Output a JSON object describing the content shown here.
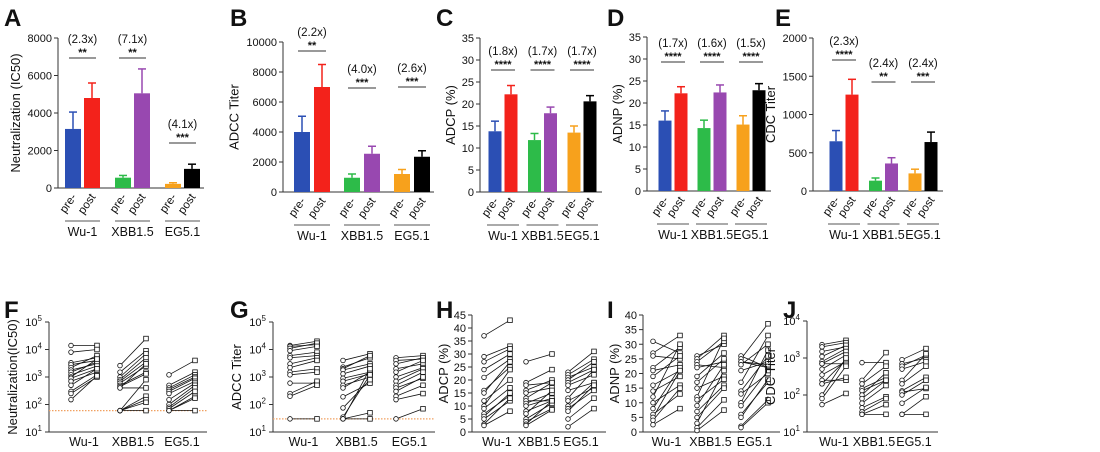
{
  "figure": {
    "groups": [
      "Wu-1",
      "XBB1.5",
      "EG5.1"
    ],
    "conditions": [
      "pre-",
      "post"
    ],
    "bar_colors": [
      [
        "#2b4fb4",
        "#f3221b"
      ],
      [
        "#2dbb49",
        "#9848b0"
      ],
      [
        "#f7a11c",
        "#000000"
      ]
    ],
    "lod_color": "#f0a060"
  },
  "chart_data": [
    {
      "panel": "A",
      "type": "bar",
      "ylabel": "Neutralization (IC50)",
      "ylim": [
        0,
        8000
      ],
      "yticks": [
        0,
        2000,
        4000,
        6000,
        8000
      ],
      "values": [
        [
          3150,
          4800
        ],
        [
          550,
          5050
        ],
        [
          220,
          1020
        ]
      ],
      "errors": [
        [
          900,
          800
        ],
        [
          120,
          1300
        ],
        [
          60,
          250
        ]
      ],
      "annotations": [
        {
          "fold": "(2.3x)",
          "sig": "**"
        },
        {
          "fold": "(7.1x)",
          "sig": "**"
        },
        {
          "fold": "(4.1x)",
          "sig": "***"
        }
      ]
    },
    {
      "panel": "B",
      "type": "bar",
      "ylabel": "ADCC Titer",
      "ylim": [
        0,
        10000
      ],
      "yticks": [
        0,
        2000,
        4000,
        6000,
        8000,
        10000
      ],
      "values": [
        [
          4000,
          7000
        ],
        [
          950,
          2550
        ],
        [
          1200,
          2350
        ]
      ],
      "errors": [
        [
          1050,
          1500
        ],
        [
          250,
          500
        ],
        [
          300,
          400
        ]
      ],
      "annotations": [
        {
          "fold": "(2.2x)",
          "sig": "**"
        },
        {
          "fold": "(4.0x)",
          "sig": "***"
        },
        {
          "fold": "(2.6x)",
          "sig": "***"
        }
      ]
    },
    {
      "panel": "C",
      "type": "bar",
      "ylabel": "ADCP (%)",
      "ylim": [
        0,
        35
      ],
      "yticks": [
        0,
        5,
        10,
        15,
        20,
        25,
        30,
        35
      ],
      "values": [
        [
          13.8,
          22.2
        ],
        [
          11.8,
          17.9
        ],
        [
          13.5,
          20.6
        ]
      ],
      "errors": [
        [
          2.3,
          2.0
        ],
        [
          1.5,
          1.4
        ],
        [
          1.5,
          1.3
        ]
      ],
      "annotations": [
        {
          "fold": "(1.8x)",
          "sig": "****"
        },
        {
          "fold": "(1.7x)",
          "sig": "****"
        },
        {
          "fold": "(1.7x)",
          "sig": "****"
        }
      ]
    },
    {
      "panel": "D",
      "type": "bar",
      "ylabel": "ADNP (%)",
      "ylim": [
        0,
        35
      ],
      "yticks": [
        0,
        5,
        10,
        15,
        20,
        25,
        30,
        35
      ],
      "values": [
        [
          16.0,
          22.2
        ],
        [
          14.3,
          22.4
        ],
        [
          15.1,
          22.9
        ]
      ],
      "errors": [
        [
          2.2,
          1.5
        ],
        [
          1.8,
          1.7
        ],
        [
          2.0,
          1.5
        ]
      ],
      "annotations": [
        {
          "fold": "(1.7x)",
          "sig": "****"
        },
        {
          "fold": "(1.6x)",
          "sig": "****"
        },
        {
          "fold": "(1.5x)",
          "sig": "****"
        }
      ]
    },
    {
      "panel": "E",
      "type": "bar",
      "ylabel": "CDC Titer",
      "ylim": [
        0,
        2000
      ],
      "yticks": [
        0,
        500,
        1000,
        1500,
        2000
      ],
      "values": [
        [
          650,
          1260
        ],
        [
          135,
          360
        ],
        [
          230,
          640
        ]
      ],
      "errors": [
        [
          140,
          200
        ],
        [
          35,
          75
        ],
        [
          55,
          130
        ]
      ],
      "annotations": [
        {
          "fold": "(2.3x)",
          "sig": "****"
        },
        {
          "fold": "(2.4x)",
          "sig": "**"
        },
        {
          "fold": "(2.4x)",
          "sig": "***"
        }
      ]
    },
    {
      "panel": "F",
      "type": "paired-line",
      "ylabel": "Neutralization(IC50)",
      "yscale": "log",
      "ylim": [
        10,
        100000
      ],
      "yticks": [
        10,
        100,
        1000,
        10000,
        100000
      ],
      "lod": 60,
      "pairs": [
        {
          "pre": [
            14000,
            8000,
            3300,
            2800,
            2200,
            1800,
            1500,
            1200,
            1000,
            900,
            700,
            500,
            300,
            250,
            150
          ],
          "post": [
            14000,
            10000,
            5000,
            4000,
            6000,
            3000,
            3500,
            2500,
            4500,
            2000,
            1500,
            2000,
            1200,
            1000,
            1100
          ]
        },
        {
          "pre": [
            2600,
            1500,
            1000,
            800,
            700,
            600,
            500,
            450,
            400,
            400,
            60,
            60,
            60,
            60,
            60
          ],
          "post": [
            25000,
            9000,
            7000,
            5000,
            3500,
            2500,
            1500,
            1300,
            3000,
            400,
            800,
            200,
            150,
            120,
            60
          ]
        },
        {
          "pre": [
            1200,
            500,
            400,
            350,
            300,
            250,
            150,
            100,
            80,
            70,
            60,
            60,
            60
          ],
          "post": [
            4000,
            1500,
            1200,
            1000,
            900,
            700,
            600,
            500,
            400,
            300,
            200,
            170,
            60
          ]
        }
      ]
    },
    {
      "panel": "G",
      "type": "paired-line",
      "ylabel": "ADCC Titer",
      "yscale": "log",
      "ylim": [
        10,
        100000
      ],
      "yticks": [
        10,
        100,
        1000,
        10000,
        100000
      ],
      "lod": 30,
      "pairs": [
        {
          "pre": [
            14000,
            13000,
            11000,
            9000,
            6000,
            5000,
            3000,
            2200,
            1500,
            1200,
            600,
            250,
            200,
            30
          ],
          "post": [
            20000,
            15000,
            17000,
            13000,
            8000,
            6000,
            5000,
            4000,
            2000,
            1500,
            600,
            700,
            500,
            30
          ]
        },
        {
          "pre": [
            4000,
            2300,
            2000,
            1800,
            1300,
            900,
            700,
            500,
            400,
            190,
            75,
            35,
            30,
            30,
            30
          ],
          "post": [
            7000,
            5000,
            6000,
            3000,
            2500,
            1500,
            1300,
            1000,
            1500,
            600,
            800,
            1200,
            2000,
            50,
            30
          ]
        },
        {
          "pre": [
            5000,
            4000,
            3000,
            2000,
            1500,
            1000,
            700,
            500,
            400,
            300,
            200,
            150,
            30
          ],
          "post": [
            6000,
            4500,
            5000,
            3000,
            4000,
            2200,
            2000,
            1500,
            900,
            1000,
            500,
            250,
            70
          ]
        }
      ]
    },
    {
      "panel": "H",
      "type": "paired-line",
      "ylabel": "ADCP (%)",
      "yscale": "linear",
      "ylim": [
        0,
        45
      ],
      "yticks": [
        0,
        5,
        10,
        15,
        20,
        25,
        30,
        35,
        40,
        45
      ],
      "pairs": [
        {
          "pre": [
            37,
            29,
            27,
            24,
            21,
            16,
            15,
            12,
            10,
            9,
            7,
            6,
            5,
            3,
            2.5
          ],
          "post": [
            43,
            33,
            32,
            30,
            28,
            25,
            27,
            20,
            24,
            17,
            14,
            15,
            12,
            13,
            8
          ]
        },
        {
          "pre": [
            27,
            19,
            18,
            16,
            15,
            13,
            12,
            11,
            10,
            8,
            7,
            5,
            4,
            3,
            2.5
          ],
          "post": [
            30,
            24,
            19,
            20,
            17,
            19,
            12,
            15,
            13,
            12,
            16,
            11,
            9,
            12,
            8.5
          ]
        },
        {
          "pre": [
            23,
            22,
            21,
            20,
            19,
            18,
            16,
            13,
            12,
            10,
            9,
            8,
            5,
            2
          ],
          "post": [
            31,
            28,
            25,
            27,
            24,
            22,
            19,
            24,
            17,
            19,
            16,
            18,
            13,
            9
          ]
        }
      ]
    },
    {
      "panel": "I",
      "type": "paired-line",
      "ylabel": "ADNP (%)",
      "yscale": "linear",
      "ylim": [
        0,
        40
      ],
      "yticks": [
        0,
        5,
        10,
        15,
        20,
        25,
        30,
        35,
        40
      ],
      "pairs": [
        {
          "pre": [
            31,
            27,
            26,
            22,
            21,
            19,
            16,
            14,
            12,
            10,
            8,
            6,
            5,
            4,
            2.5
          ],
          "post": [
            27,
            33,
            25,
            29,
            23,
            26,
            21,
            19,
            30,
            16,
            22,
            13,
            21,
            15,
            8
          ]
        },
        {
          "pre": [
            26,
            25,
            24,
            23,
            22,
            19,
            17,
            15,
            12,
            11,
            9,
            7,
            5,
            3,
            1.5,
            0.5
          ],
          "post": [
            30,
            33,
            31,
            22,
            24,
            27,
            25,
            19,
            32,
            18,
            23,
            16,
            15,
            21,
            11,
            7.5
          ]
        },
        {
          "pre": [
            26,
            25,
            24,
            24,
            23,
            21,
            17,
            14,
            13,
            10,
            9,
            6,
            5,
            2,
            1.5
          ],
          "post": [
            22,
            37,
            22,
            23,
            30,
            24,
            33,
            26,
            20,
            28,
            21,
            17,
            18,
            11,
            10
          ]
        }
      ]
    },
    {
      "panel": "J",
      "type": "paired-line",
      "ylabel": "CDC Titer",
      "yscale": "log",
      "ylim": [
        10,
        10000
      ],
      "yticks": [
        10,
        100,
        1000,
        10000
      ],
      "pairs": [
        {
          "pre": [
            2300,
            2000,
            1500,
            1100,
            800,
            700,
            700,
            500,
            350,
            250,
            200,
            200,
            100,
            80,
            55
          ],
          "post": [
            3000,
            2600,
            2000,
            2200,
            1800,
            1500,
            700,
            1200,
            800,
            250,
            300,
            900,
            1000,
            600,
            110
          ]
        },
        {
          "pre": [
            750,
            250,
            200,
            150,
            130,
            100,
            80,
            60,
            45,
            35,
            30,
            30
          ],
          "post": [
            750,
            1400,
            600,
            300,
            250,
            400,
            250,
            180,
            90,
            80,
            55,
            30
          ]
        },
        {
          "pre": [
            900,
            700,
            600,
            500,
            250,
            200,
            130,
            120,
            100,
            60,
            30,
            30
          ],
          "post": [
            1800,
            1000,
            1200,
            800,
            1300,
            600,
            300,
            150,
            250,
            160,
            90,
            30
          ]
        }
      ]
    }
  ]
}
